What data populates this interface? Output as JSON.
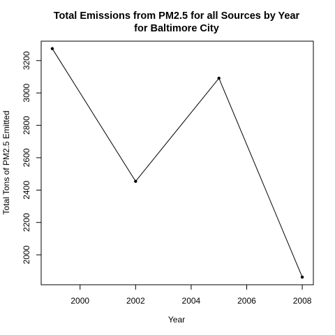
{
  "chart_data": {
    "type": "line",
    "title_line1": "Total Emissions from PM2.5 for all Sources by Year",
    "title_line2": "for Baltimore City",
    "xlabel": "Year",
    "ylabel": "Total Tons of PM2.5 Emitted",
    "x": [
      1999,
      2002,
      2005,
      2008
    ],
    "y": [
      3274,
      2454,
      3091,
      1862
    ],
    "xlim": [
      1998.6,
      2008.4
    ],
    "ylim": [
      1815,
      3320
    ],
    "x_ticks": [
      2000,
      2002,
      2004,
      2006,
      2008
    ],
    "y_ticks": [
      2000,
      2200,
      2400,
      2600,
      2800,
      3000,
      3200
    ],
    "grid": false,
    "line_color": "#000000",
    "point_color": "#000000"
  }
}
